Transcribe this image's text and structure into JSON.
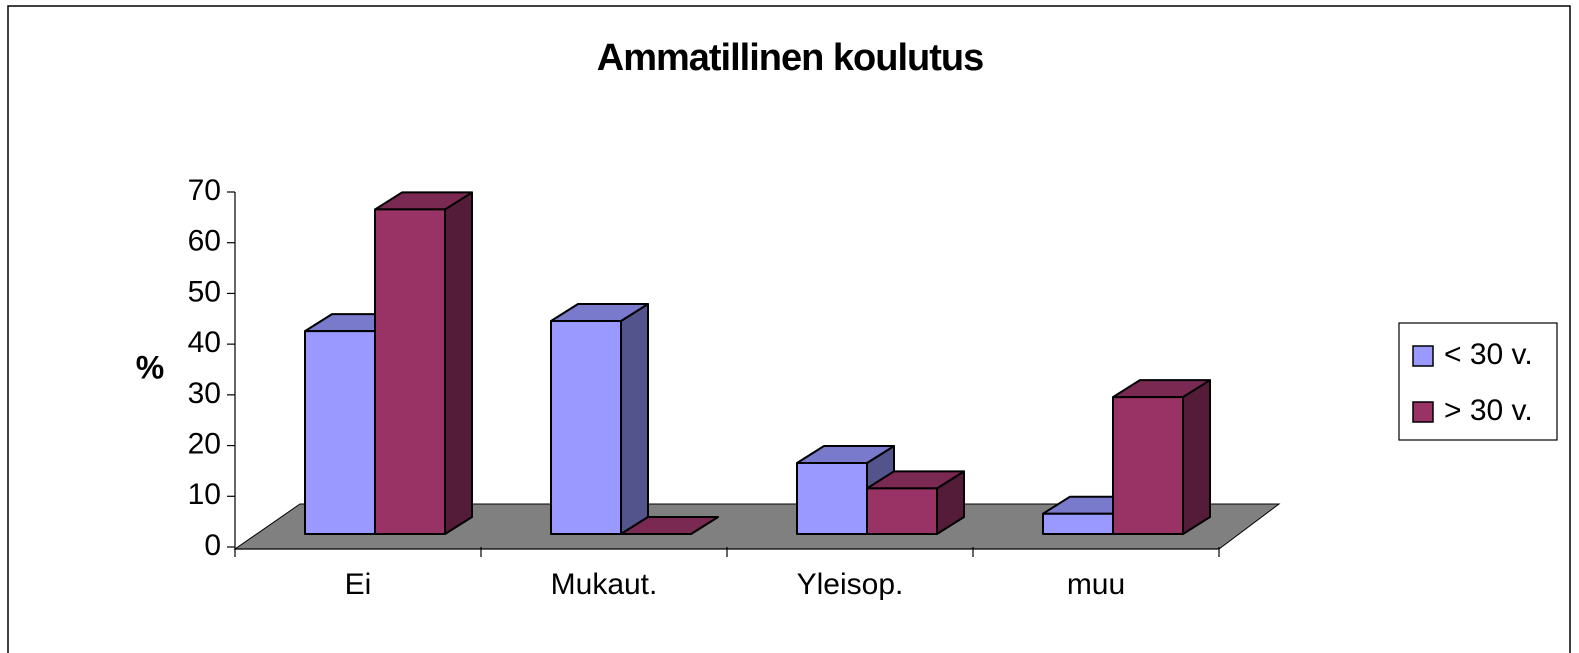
{
  "chart_data": {
    "type": "bar3d",
    "title": "Ammatillinen koulutus",
    "y_label": "%",
    "categories": [
      "Ei",
      "Mukaut.",
      "Yleisop.",
      "muu"
    ],
    "series": [
      {
        "name": "< 30 v.",
        "color": "#9999ff",
        "values": [
          40,
          42,
          14,
          4
        ]
      },
      {
        "name": "> 30 v.",
        "color": "#993366",
        "values": [
          64,
          0,
          9,
          27
        ]
      }
    ],
    "ylim": [
      0,
      70
    ],
    "yticks": [
      0,
      10,
      20,
      30,
      40,
      50,
      60,
      70
    ],
    "legend": "right"
  }
}
